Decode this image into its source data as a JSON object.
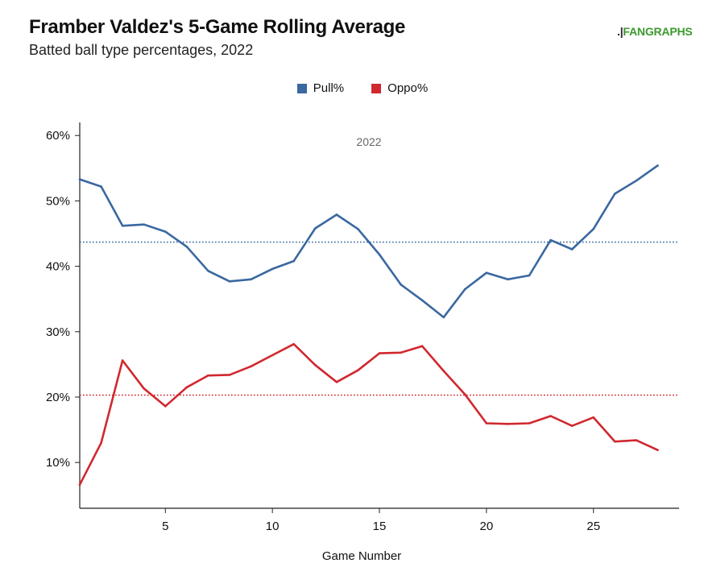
{
  "header": {
    "title": "Framber Valdez's 5-Game Rolling Average",
    "subtitle": "Batted ball type percentages, 2022",
    "logo_mark": ".|",
    "logo_text": "FANGRAPHS"
  },
  "colors": {
    "pull": "#3a68a0",
    "oppo": "#d1282f",
    "axis": "#222222"
  },
  "chart_data": {
    "type": "line",
    "title": "Framber Valdez's 5-Game Rolling Average",
    "subtitle": "Batted ball type percentages, 2022",
    "xlabel": "Game Number",
    "ylabel": "",
    "annotation": "2022",
    "xlim": [
      1,
      29
    ],
    "ylim": [
      3,
      62
    ],
    "x_ticks": [
      5,
      10,
      15,
      20,
      25
    ],
    "y_ticks": [
      10,
      20,
      30,
      40,
      50,
      60
    ],
    "y_tick_labels": [
      "10%",
      "20%",
      "30%",
      "40%",
      "50%",
      "60%"
    ],
    "x": [
      1,
      2,
      3,
      4,
      5,
      6,
      7,
      8,
      9,
      10,
      11,
      12,
      13,
      14,
      15,
      16,
      17,
      18,
      19,
      20,
      21,
      22,
      23,
      24,
      25,
      26,
      27,
      28
    ],
    "series": [
      {
        "name": "Pull%",
        "color": "#3a68a0",
        "average": 43.7,
        "values": [
          53.3,
          52.2,
          46.2,
          46.4,
          45.3,
          43.0,
          39.3,
          37.7,
          38.0,
          39.6,
          40.8,
          45.8,
          47.9,
          45.7,
          41.8,
          37.2,
          34.8,
          32.2,
          36.5,
          39.0,
          38.0,
          38.6,
          44.0,
          42.6,
          45.7,
          51.1,
          53.1,
          55.4
        ]
      },
      {
        "name": "Oppo%",
        "color": "#d1282f",
        "average": 20.3,
        "values": [
          6.6,
          13.0,
          25.6,
          21.3,
          18.6,
          21.5,
          23.3,
          23.4,
          24.7,
          26.4,
          28.1,
          24.9,
          22.3,
          24.1,
          26.7,
          26.8,
          27.8,
          24.0,
          20.4,
          16.0,
          15.9,
          16.0,
          17.1,
          15.6,
          16.9,
          13.2,
          13.4,
          11.9
        ]
      }
    ],
    "legend": [
      "Pull%",
      "Oppo%"
    ],
    "legend_position": "top-center",
    "grid": false
  }
}
